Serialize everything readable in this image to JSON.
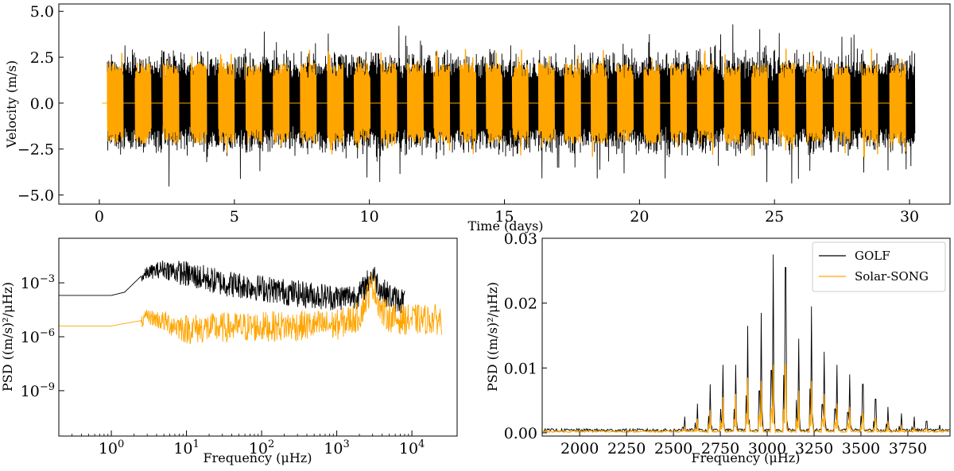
{
  "colors": {
    "golf": "#000000",
    "song": "#ffa500"
  },
  "chart_data": [
    {
      "type": "line",
      "title": "",
      "xlabel": "Time (days)",
      "ylabel": "Velocity (m/s)",
      "xlim": [
        -1.5,
        31.5
      ],
      "ylim": [
        -5.5,
        5.4
      ],
      "xticks": [
        0,
        5,
        10,
        15,
        20,
        25,
        30
      ],
      "xtick_labels": [
        "0",
        "5",
        "10",
        "15",
        "20",
        "25",
        "30"
      ],
      "yticks": [
        -5.0,
        -2.5,
        0.0,
        2.5,
        5.0
      ],
      "ytick_labels": [
        "−5.0",
        "−2.5",
        "0.0",
        "2.5",
        "5.0"
      ],
      "series": [
        {
          "name": "GOLF",
          "color": "#000000",
          "time_range": [
            0.3,
            30.2
          ],
          "typical_amplitude": 2.7,
          "peak_amplitude": 4.7
        },
        {
          "name": "Solar-SONG",
          "color": "#ffa500",
          "time_range": [
            0.3,
            30.1
          ],
          "typical_amplitude": 2.1,
          "observing_windows_per_day": 1,
          "gap_value": 0.0
        }
      ]
    },
    {
      "type": "line",
      "title": "",
      "xlabel": "Frequency (μHz)",
      "ylabel": "PSD ((m/s)²/μHz)",
      "xscale": "log",
      "yscale": "log",
      "xlim": [
        0.2,
        40000
      ],
      "ylim": [
        3e-12,
        0.3
      ],
      "xticks": [
        1,
        10,
        100,
        1000,
        10000
      ],
      "xtick_labels": [
        [
          "10",
          "0"
        ],
        [
          "10",
          "1"
        ],
        [
          "10",
          "2"
        ],
        [
          "10",
          "3"
        ],
        [
          "10",
          "4"
        ]
      ],
      "yticks": [
        0.001,
        1e-06,
        1e-09
      ],
      "ytick_labels": [
        [
          "10",
          "−3"
        ],
        [
          "10",
          "−6"
        ],
        [
          "10",
          "−9"
        ]
      ],
      "series": [
        {
          "name": "GOLF",
          "color": "#000000",
          "envelope_freq": [
            0.2,
            1.0,
            1.5,
            3,
            5,
            10,
            30,
            100,
            300,
            1000,
            2000,
            3000,
            4000,
            6000,
            8000
          ],
          "envelope_psd": [
            0.0002,
            0.0002,
            0.0003,
            0.005,
            0.01,
            0.006,
            0.002,
            0.001,
            0.0005,
            0.0003,
            0.0004,
            0.006,
            0.0007,
            0.00025,
            0.0002
          ],
          "scatter_decades": 1.5
        },
        {
          "name": "Solar-SONG",
          "color": "#ffa500",
          "envelope_freq": [
            0.2,
            1.0,
            2.5,
            3,
            10,
            100,
            1000,
            2000,
            3000,
            4000,
            6000,
            10000,
            25000
          ],
          "envelope_psd": [
            4e-06,
            4e-06,
            8e-06,
            2e-05,
            6e-06,
            8e-06,
            1e-05,
            3e-05,
            0.002,
            5e-05,
            2e-05,
            2e-05,
            2e-05
          ],
          "scatter_decades": 1.7
        }
      ]
    },
    {
      "type": "line",
      "title": "",
      "xlabel": "Frequency (μHz)",
      "ylabel": "PSD ((m/s)²/μHz)",
      "xlim": [
        1800,
        3975
      ],
      "ylim": [
        -0.0005,
        0.03
      ],
      "xticks": [
        2000,
        2250,
        2500,
        2750,
        3000,
        3250,
        3500,
        3750
      ],
      "xtick_labels": [
        "2000",
        "2250",
        "2500",
        "2750",
        "3000",
        "3250",
        "3500",
        "3750"
      ],
      "yticks": [
        0.0,
        0.01,
        0.02,
        0.03
      ],
      "ytick_labels": [
        "0.00",
        "0.01",
        "0.02",
        "0.03"
      ],
      "legend": {
        "loc": "upper right",
        "entries": [
          "GOLF",
          "Solar-SONG"
        ]
      },
      "series": [
        {
          "name": "GOLF",
          "color": "#000000",
          "peak_frequencies": [
            2560,
            2627,
            2697,
            2763,
            2833,
            2897,
            2968,
            3032,
            3098,
            3167,
            3237,
            3304,
            3372,
            3440,
            3510,
            3578,
            3645,
            3715,
            3783,
            3850,
            3919
          ],
          "peak_values": [
            0.0025,
            0.0045,
            0.0075,
            0.0105,
            0.0105,
            0.0165,
            0.0185,
            0.0275,
            0.0255,
            0.0145,
            0.0195,
            0.0125,
            0.0105,
            0.009,
            0.0075,
            0.0052,
            0.004,
            0.003,
            0.0025,
            0.0018,
            0.0012
          ]
        },
        {
          "name": "Solar-SONG",
          "color": "#ffa500",
          "peak_frequencies": [
            2560,
            2627,
            2697,
            2763,
            2833,
            2897,
            2968,
            3032,
            3098,
            3167,
            3237,
            3304,
            3372,
            3440,
            3510,
            3578,
            3645,
            3715,
            3783,
            3850,
            3919
          ],
          "peak_values": [
            0.001,
            0.0022,
            0.0035,
            0.0055,
            0.006,
            0.0085,
            0.008,
            0.0105,
            0.0105,
            0.0065,
            0.008,
            0.006,
            0.0045,
            0.004,
            0.003,
            0.0022,
            0.0018,
            0.0012,
            0.0009,
            0.0006,
            0.0004
          ]
        }
      ]
    }
  ]
}
